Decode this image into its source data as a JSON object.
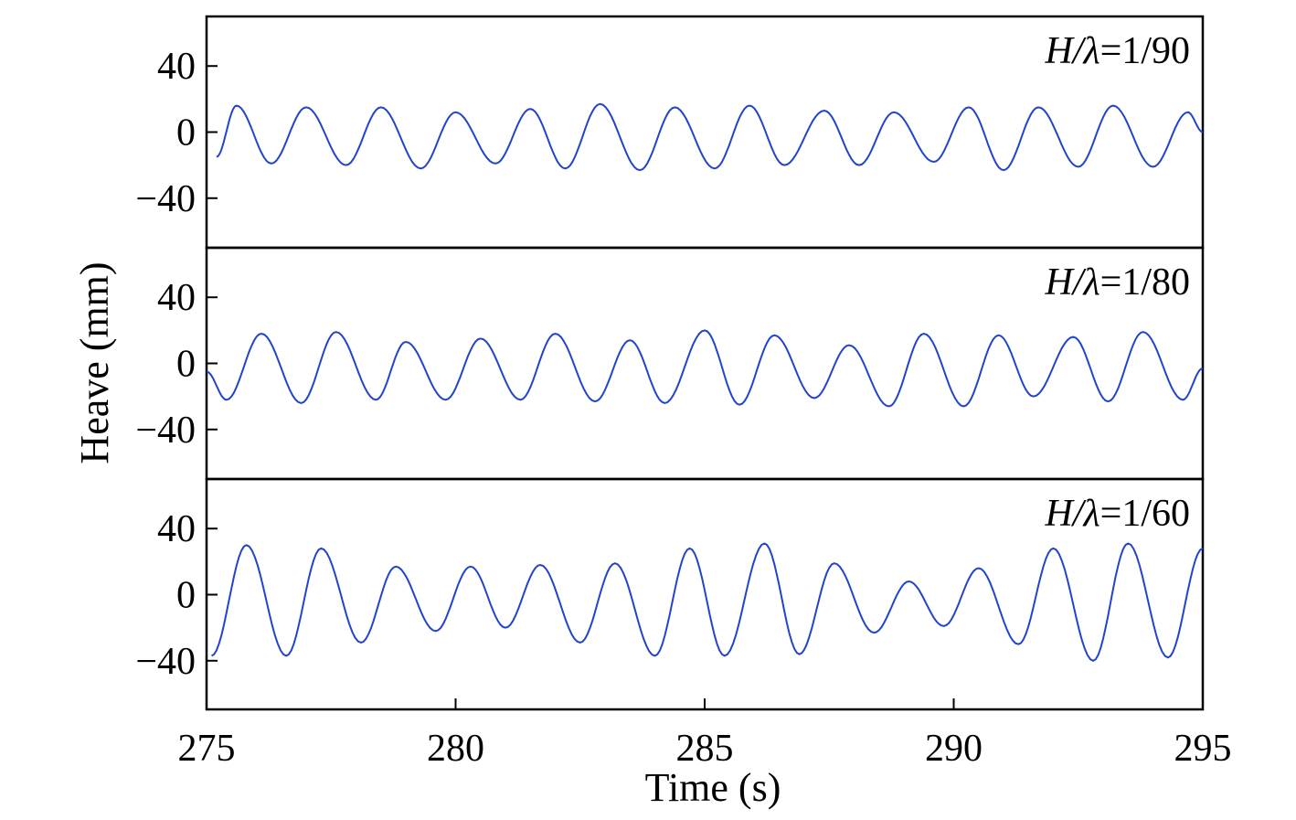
{
  "chart_data": {
    "type": "line",
    "xlabel": "Time (s)",
    "ylabel": "Heave (mm)",
    "xlim": [
      275,
      295
    ],
    "ylim": [
      -70,
      70
    ],
    "x_ticks": [
      "275",
      "280",
      "285",
      "290",
      "295"
    ],
    "y_ticks": [
      "40",
      "0",
      "−40"
    ],
    "line_color": "#2244cc",
    "grid": false,
    "legend": "none",
    "panels": [
      {
        "label_var": "H/λ",
        "label_eq": "=1/90",
        "period": 1.49,
        "peaks": [
          [
            275.2,
            -15
          ],
          [
            275.6,
            16
          ],
          [
            276.3,
            -19
          ],
          [
            277.0,
            15
          ],
          [
            277.8,
            -20
          ],
          [
            278.5,
            15
          ],
          [
            279.3,
            -22
          ],
          [
            280.0,
            12
          ],
          [
            280.8,
            -19
          ],
          [
            281.5,
            14
          ],
          [
            282.2,
            -22
          ],
          [
            282.9,
            17
          ],
          [
            283.7,
            -23
          ],
          [
            284.4,
            15
          ],
          [
            285.2,
            -22
          ],
          [
            285.9,
            16
          ],
          [
            286.6,
            -20
          ],
          [
            287.4,
            13
          ],
          [
            288.1,
            -20
          ],
          [
            288.8,
            12
          ],
          [
            289.6,
            -18
          ],
          [
            290.3,
            15
          ],
          [
            291.0,
            -23
          ],
          [
            291.7,
            15
          ],
          [
            292.5,
            -21
          ],
          [
            293.2,
            16
          ],
          [
            294.0,
            -21
          ],
          [
            294.7,
            12
          ],
          [
            295.0,
            0
          ]
        ]
      },
      {
        "label_var": "H/λ",
        "label_eq": "=1/80",
        "period": 1.49,
        "peaks": [
          [
            275.0,
            -5
          ],
          [
            275.4,
            -22
          ],
          [
            276.1,
            18
          ],
          [
            276.9,
            -24
          ],
          [
            277.6,
            19
          ],
          [
            278.4,
            -22
          ],
          [
            279.0,
            13
          ],
          [
            279.8,
            -22
          ],
          [
            280.5,
            15
          ],
          [
            281.3,
            -22
          ],
          [
            282.0,
            18
          ],
          [
            282.8,
            -23
          ],
          [
            283.5,
            14
          ],
          [
            284.2,
            -24
          ],
          [
            285.0,
            20
          ],
          [
            285.7,
            -25
          ],
          [
            286.4,
            17
          ],
          [
            287.2,
            -21
          ],
          [
            287.9,
            11
          ],
          [
            288.7,
            -26
          ],
          [
            289.4,
            18
          ],
          [
            290.2,
            -26
          ],
          [
            290.9,
            17
          ],
          [
            291.6,
            -20
          ],
          [
            292.4,
            16
          ],
          [
            293.1,
            -23
          ],
          [
            293.8,
            19
          ],
          [
            294.6,
            -22
          ],
          [
            295.0,
            -3
          ]
        ]
      },
      {
        "label_var": "H/λ",
        "label_eq": "=1/60",
        "period": 1.49,
        "peaks": [
          [
            275.1,
            -37
          ],
          [
            275.8,
            30
          ],
          [
            276.6,
            -37
          ],
          [
            277.3,
            28
          ],
          [
            278.1,
            -29
          ],
          [
            278.8,
            17
          ],
          [
            279.6,
            -22
          ],
          [
            280.3,
            17
          ],
          [
            281.0,
            -20
          ],
          [
            281.7,
            18
          ],
          [
            282.5,
            -29
          ],
          [
            283.2,
            19
          ],
          [
            284.0,
            -37
          ],
          [
            284.7,
            28
          ],
          [
            285.4,
            -37
          ],
          [
            286.2,
            31
          ],
          [
            286.9,
            -36
          ],
          [
            287.6,
            19
          ],
          [
            288.4,
            -23
          ],
          [
            289.1,
            8
          ],
          [
            289.8,
            -19
          ],
          [
            290.5,
            16
          ],
          [
            291.3,
            -30
          ],
          [
            292.0,
            28
          ],
          [
            292.8,
            -40
          ],
          [
            293.5,
            31
          ],
          [
            294.3,
            -38
          ],
          [
            295.0,
            28
          ]
        ]
      }
    ]
  }
}
